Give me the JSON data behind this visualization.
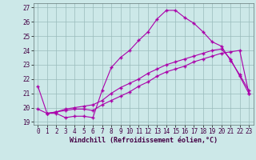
{
  "xlabel": "Windchill (Refroidissement éolien,°C)",
  "ylabel": "",
  "xlim": [
    -0.5,
    23.5
  ],
  "ylim": [
    18.8,
    27.3
  ],
  "yticks": [
    19,
    20,
    21,
    22,
    23,
    24,
    25,
    26,
    27
  ],
  "xticks": [
    0,
    1,
    2,
    3,
    4,
    5,
    6,
    7,
    8,
    9,
    10,
    11,
    12,
    13,
    14,
    15,
    16,
    17,
    18,
    19,
    20,
    21,
    22,
    23
  ],
  "bg_color": "#cce8e8",
  "line_color": "#aa00aa",
  "grid_color": "#99bbbb",
  "line1_x": [
    0,
    1,
    2,
    3,
    4,
    5,
    6,
    7,
    8,
    9,
    10,
    11,
    12,
    13,
    14,
    15,
    16,
    17,
    18,
    19,
    20,
    21,
    22,
    23
  ],
  "line1_y": [
    21.5,
    19.6,
    19.6,
    19.3,
    19.4,
    19.4,
    19.3,
    21.2,
    22.8,
    23.5,
    24.0,
    24.7,
    25.3,
    26.2,
    26.8,
    26.8,
    26.3,
    25.9,
    25.3,
    24.6,
    24.3,
    23.3,
    22.3,
    21.2
  ],
  "line2_x": [
    0,
    1,
    2,
    3,
    4,
    5,
    6,
    7,
    8,
    9,
    10,
    11,
    12,
    13,
    14,
    15,
    16,
    17,
    18,
    19,
    20,
    21,
    22,
    23
  ],
  "line2_y": [
    19.9,
    19.6,
    19.7,
    19.8,
    19.9,
    19.9,
    19.8,
    20.2,
    20.5,
    20.8,
    21.1,
    21.5,
    21.8,
    22.2,
    22.5,
    22.7,
    22.9,
    23.2,
    23.4,
    23.6,
    23.8,
    23.9,
    24.0,
    21.0
  ],
  "line3_x": [
    1,
    2,
    3,
    4,
    5,
    6,
    7,
    8,
    9,
    10,
    11,
    12,
    13,
    14,
    15,
    16,
    17,
    18,
    19,
    20,
    21,
    22,
    23
  ],
  "line3_y": [
    19.6,
    19.7,
    19.9,
    20.0,
    20.1,
    20.2,
    20.5,
    21.0,
    21.4,
    21.7,
    22.0,
    22.4,
    22.7,
    23.0,
    23.2,
    23.4,
    23.6,
    23.8,
    24.0,
    24.1,
    23.4,
    22.2,
    21.0
  ],
  "tick_fontsize": 5.5,
  "xlabel_fontsize": 6.0
}
